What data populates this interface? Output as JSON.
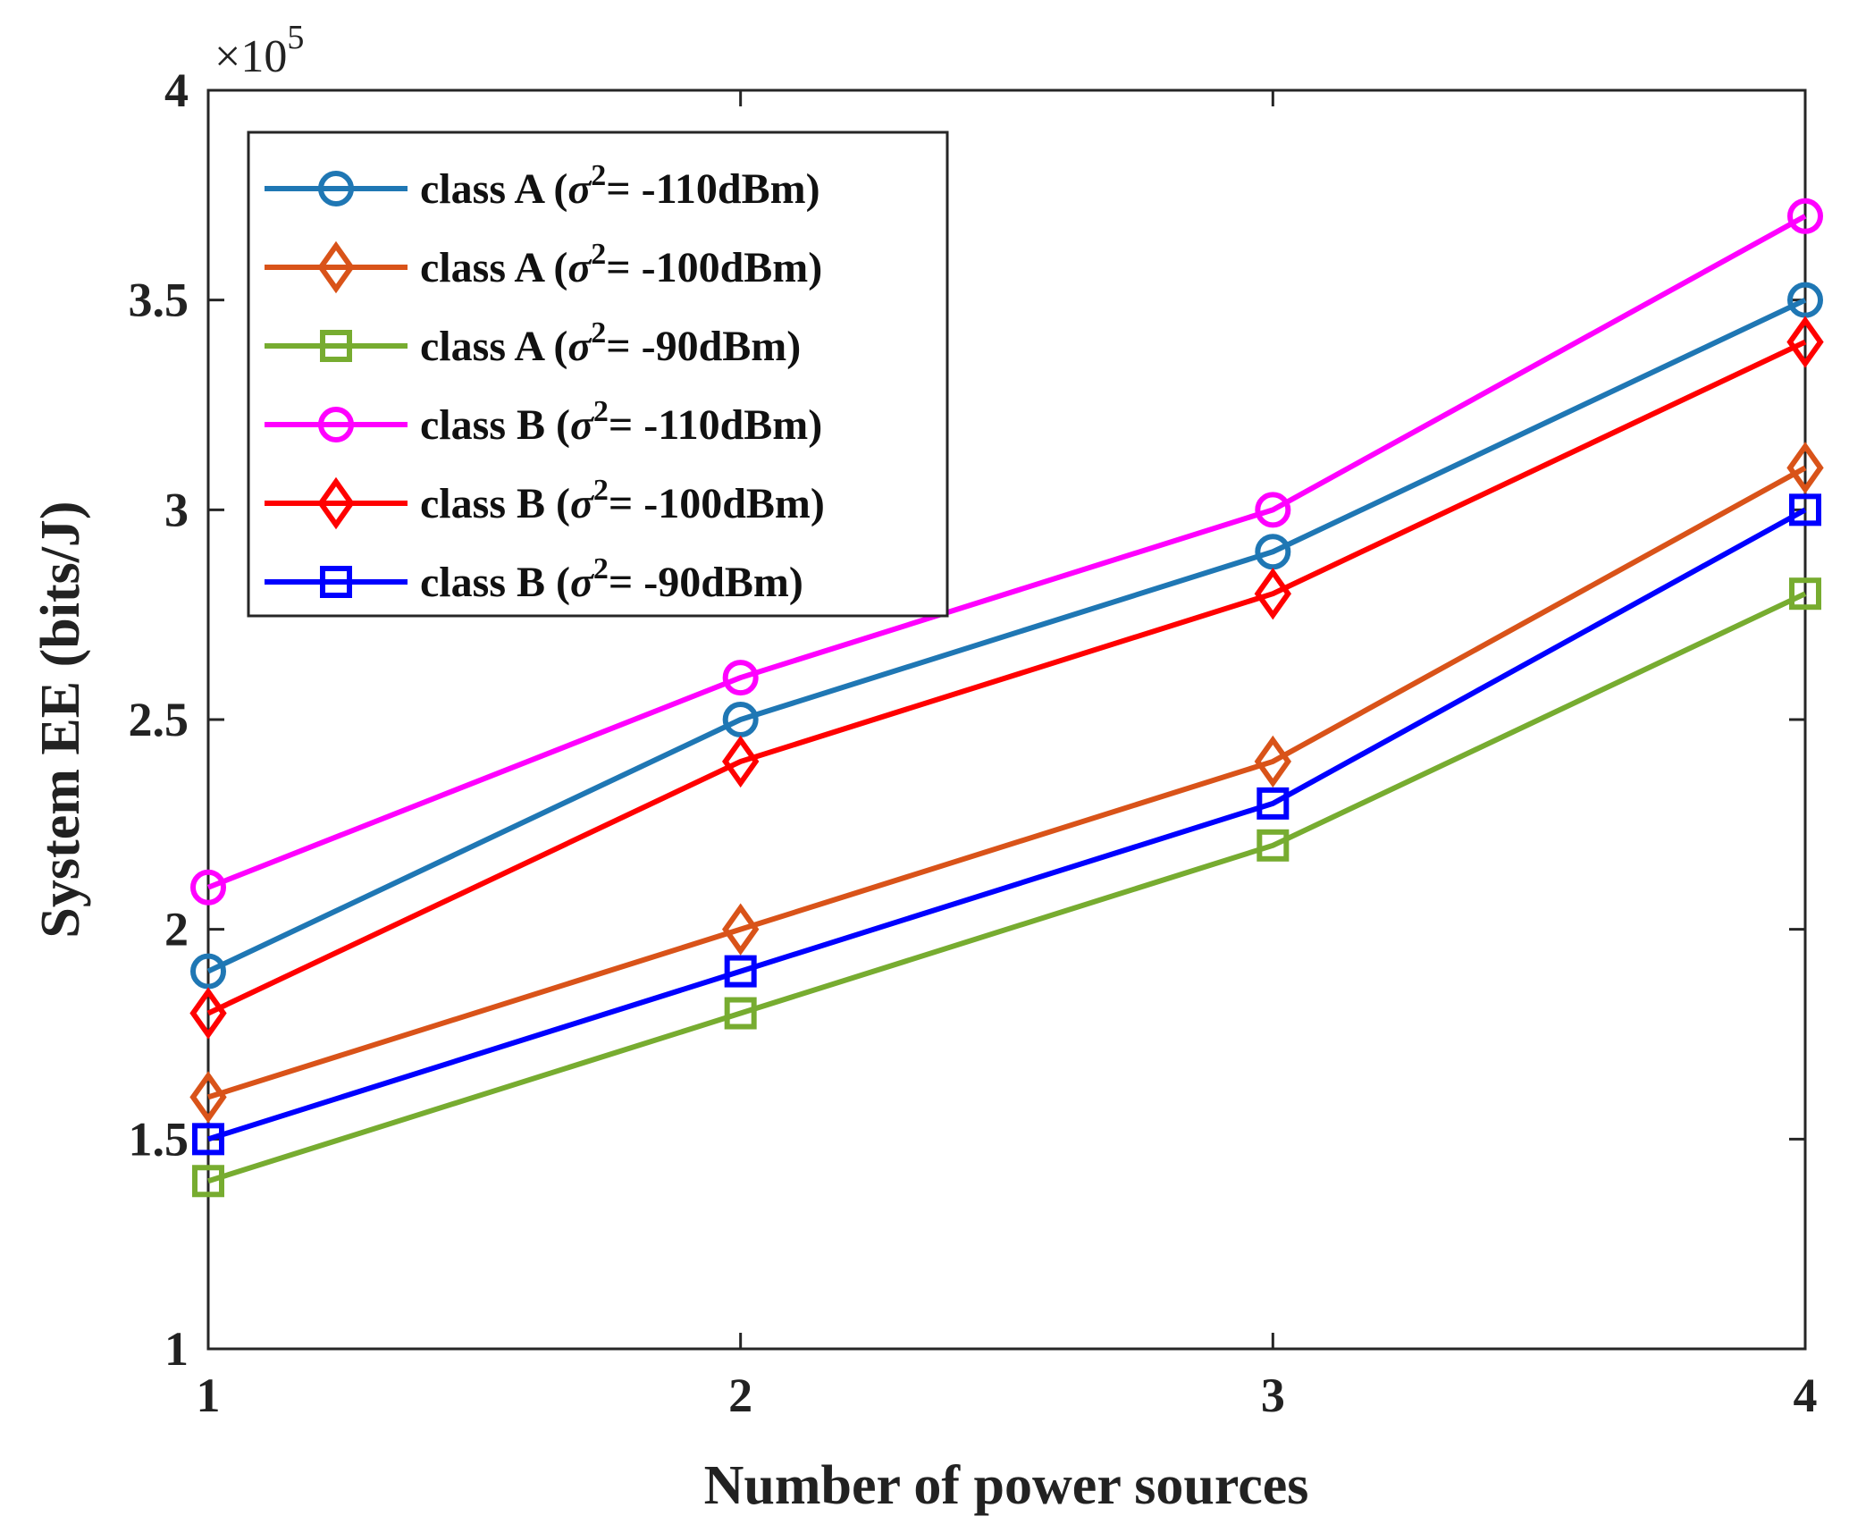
{
  "chart_data": {
    "type": "line",
    "title": "",
    "xlabel": "Number of power sources",
    "ylabel": "System EE (bits/J)",
    "x": [
      1,
      2,
      3,
      4
    ],
    "xlim": [
      1,
      4
    ],
    "ylim": [
      1,
      4
    ],
    "xticks": [
      "1",
      "2",
      "3",
      "4"
    ],
    "yticks": [
      "1",
      "1.5",
      "2",
      "2.5",
      "3",
      "3.5",
      "4"
    ],
    "y_multiplier": {
      "base": "×10",
      "exponent": "5"
    },
    "grid": false,
    "legend_position": "top-left",
    "series": [
      {
        "name": "class A (σ2= -110dBm)",
        "label_main": "class A (",
        "sigma": "σ",
        "sup": "2",
        "label_rest": "= -110dBm)",
        "color": "#1f77b4",
        "marker": "circle",
        "values": [
          1.9,
          2.5,
          2.9,
          3.5
        ]
      },
      {
        "name": "class A (σ2= -100dBm)",
        "label_main": "class A (",
        "sigma": "σ",
        "sup": "2",
        "label_rest": "= -100dBm)",
        "color": "#d95319",
        "marker": "diamond",
        "values": [
          1.6,
          2.0,
          2.4,
          3.1
        ]
      },
      {
        "name": "class A (σ2= -90dBm)",
        "label_main": "class A (",
        "sigma": "σ",
        "sup": "2",
        "label_rest": "= -90dBm)",
        "color": "#77ac30",
        "marker": "square",
        "values": [
          1.4,
          1.8,
          2.2,
          2.8
        ]
      },
      {
        "name": "class B (σ2= -110dBm)",
        "label_main": "class B (",
        "sigma": "σ",
        "sup": "2",
        "label_rest": "= -110dBm)",
        "color": "#ff00ff",
        "marker": "circle",
        "values": [
          2.1,
          2.6,
          3.0,
          3.7
        ]
      },
      {
        "name": "class B (σ2= -100dBm)",
        "label_main": "class B (",
        "sigma": "σ",
        "sup": "2",
        "label_rest": "= -100dBm)",
        "color": "#ff0000",
        "marker": "diamond",
        "values": [
          1.8,
          2.4,
          2.8,
          3.4
        ]
      },
      {
        "name": "class B (σ2= -90dBm)",
        "label_main": "class B (",
        "sigma": "σ",
        "sup": "2",
        "label_rest": "= -90dBm)",
        "color": "#0000ff",
        "marker": "square",
        "values": [
          1.5,
          1.9,
          2.3,
          3.0
        ]
      }
    ]
  }
}
